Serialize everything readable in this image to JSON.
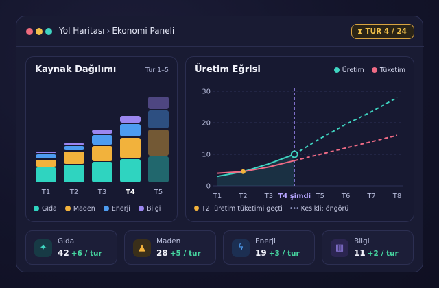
{
  "header": {
    "breadcrumb_root": "Yol Haritası",
    "breadcrumb_sep": "›",
    "breadcrumb_page": "Ekonomi Paneli",
    "turn_badge": "TUR 4 / 24",
    "turn_icon": "hourglass-icon"
  },
  "resource_panel": {
    "title": "Kaynak Dağılımı",
    "range": "Tur 1–5",
    "legend": [
      "Gıda",
      "Maden",
      "Enerji",
      "Bilgi"
    ]
  },
  "production_panel": {
    "title": "Üretim Eğrisi",
    "legend": [
      "Üretim",
      "Tüketim"
    ],
    "note_marker": "T2: üretim tüketimi geçti",
    "note_dashed": "Kesikli: öngörü"
  },
  "cards": [
    {
      "label": "Gıda",
      "value": "42",
      "rate": "+6 / tur",
      "icon": "wheat-icon",
      "color": "#3fd4c1"
    },
    {
      "label": "Maden",
      "value": "28",
      "rate": "+5 / tur",
      "icon": "warning-ore-icon",
      "color": "#f2b23c"
    },
    {
      "label": "Enerji",
      "value": "19",
      "rate": "+3 / tur",
      "icon": "lightning-icon",
      "color": "#4d9cf0"
    },
    {
      "label": "Bilgi",
      "value": "11",
      "rate": "+2 / tur",
      "icon": "book-icon",
      "color": "#9b86f0"
    }
  ],
  "chart_data": [
    {
      "type": "bar",
      "stacked": true,
      "title": "Kaynak Dağılımı",
      "categories": [
        "T1",
        "T2",
        "T3",
        "T4",
        "T5"
      ],
      "highlight_category": "T4",
      "projected_category": "T5",
      "series": [
        {
          "name": "Gıda",
          "color": "#2fd4c0",
          "values": [
            6,
            7,
            8,
            9,
            10
          ]
        },
        {
          "name": "Maden",
          "color": "#f2b23c",
          "values": [
            3,
            5,
            6,
            8,
            10
          ]
        },
        {
          "name": "Enerji",
          "color": "#4d9cf0",
          "values": [
            2,
            2,
            4,
            5,
            7
          ]
        },
        {
          "name": "Bilgi",
          "color": "#9b86f0",
          "values": [
            1,
            1,
            2,
            3,
            5
          ]
        }
      ],
      "grid": false
    },
    {
      "type": "line",
      "title": "Üretim Eğrisi",
      "x": [
        "T1",
        "T2",
        "T3",
        "T4 şimdi",
        "T5",
        "T6",
        "T7",
        "T8"
      ],
      "now_index": 3,
      "yticks": [
        0,
        10,
        20,
        30
      ],
      "ylim": [
        0,
        30
      ],
      "grid": true,
      "series": [
        {
          "name": "Üretim",
          "color": "#3fd4c1",
          "values": [
            3,
            4.5,
            7,
            10,
            15,
            19.5,
            23.5,
            28
          ],
          "projected_from_index": 3
        },
        {
          "name": "Tüketim",
          "color": "#f06b85",
          "values": [
            4,
            4.5,
            6,
            8,
            10,
            12,
            14,
            16
          ],
          "projected_from_index": 3
        }
      ],
      "marker": {
        "x_index": 1,
        "value": 4.5,
        "color": "#f2b23c"
      }
    }
  ]
}
